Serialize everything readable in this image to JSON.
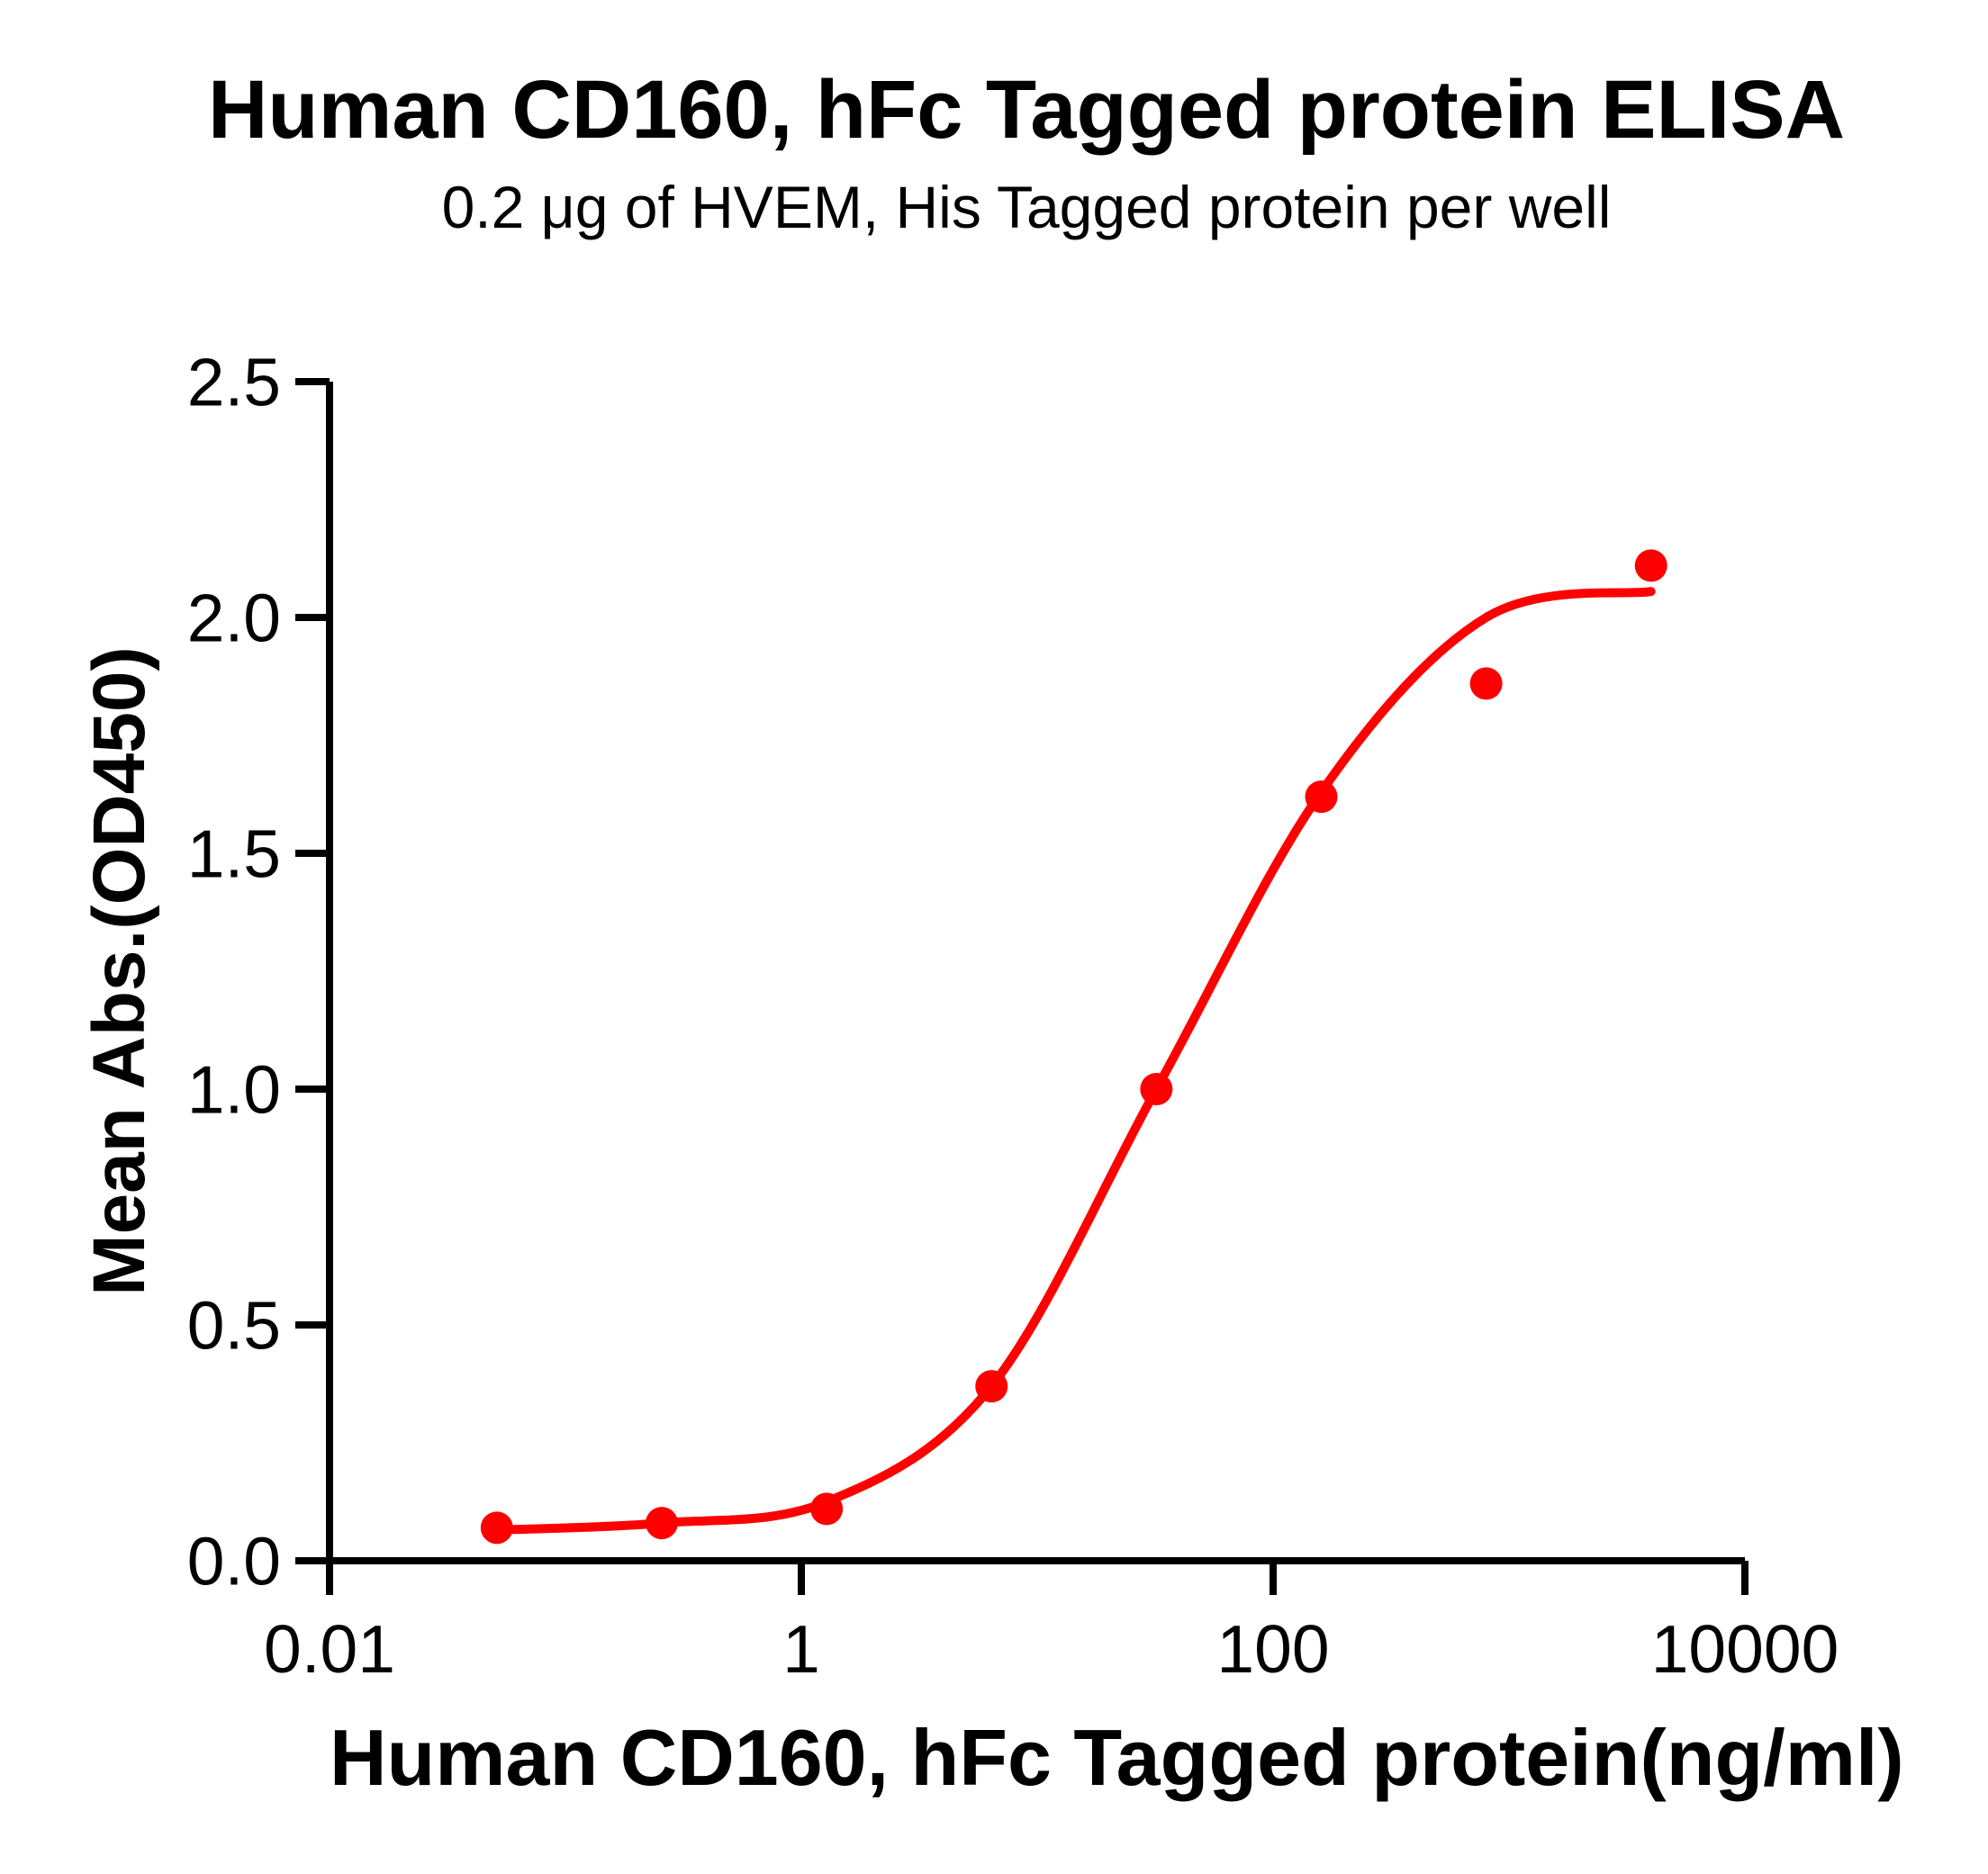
{
  "colors": {
    "accent": "#FF0000",
    "axis": "#000000",
    "background": "#FFFFFF"
  },
  "chart_data": {
    "type": "scatter",
    "title": "Human CD160, hFc Tagged protein ELISA",
    "subtitle": "0.2 μg of HVEM, His Tagged protein per well",
    "xlabel": "Human CD160, hFc Tagged protein(ng/ml)",
    "ylabel": "Mean Abs.(OD450)",
    "x_scale": "log10",
    "xlim": [
      0.01,
      10000
    ],
    "ylim": [
      0.0,
      2.5
    ],
    "x_ticks": [
      0.01,
      1,
      100,
      10000
    ],
    "x_tick_labels": [
      "0.01",
      "1",
      "100",
      "10000"
    ],
    "y_ticks": [
      0.0,
      0.5,
      1.0,
      1.5,
      2.0,
      2.5
    ],
    "y_tick_labels": [
      "0.0",
      "0.5",
      "1.0",
      "1.5",
      "2.0",
      "2.5"
    ],
    "grid": false,
    "legend": "none",
    "series": [
      {
        "name": "Human CD160, hFc Tagged protein",
        "marker": "circle",
        "marker_color": "#FF0000",
        "x": [
          0.0512,
          0.256,
          1.28,
          6.4,
          32,
          160,
          800,
          4000
        ],
        "y": [
          0.07,
          0.08,
          0.11,
          0.37,
          1.0,
          1.62,
          1.86,
          2.11
        ]
      }
    ],
    "fit_curve": {
      "name": "dose-response fit",
      "color": "#FF0000",
      "x": [
        0.0512,
        0.256,
        1.28,
        6.4,
        32,
        160,
        800,
        4000
      ],
      "y": [
        0.065,
        0.08,
        0.125,
        0.37,
        1.0,
        1.63,
        2.0,
        2.055
      ]
    }
  }
}
